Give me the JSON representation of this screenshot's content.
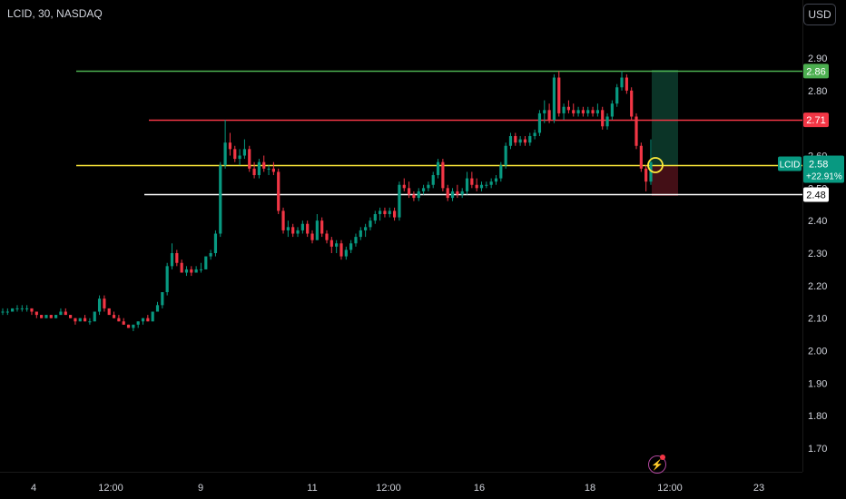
{
  "header": {
    "symbol_title": "LCID, 30, NASDAQ",
    "currency": "USD"
  },
  "chart_data": {
    "type": "candlestick",
    "symbol": "LCID",
    "interval": "30",
    "exchange": "NASDAQ",
    "y_ticks": [
      "2.90",
      "2.80",
      "2.70",
      "2.60",
      "2.50",
      "2.40",
      "2.30",
      "2.20",
      "2.10",
      "2.00",
      "1.90",
      "1.80",
      "1.70"
    ],
    "ylim": [
      1.63,
      3.0
    ],
    "x_ticks": [
      "4",
      "12:00",
      "9",
      "11",
      "12:00",
      "16",
      "18",
      "12:00",
      "23"
    ],
    "horizontal_lines": [
      {
        "value": 2.86,
        "label": "2.86",
        "color": "#4caf50"
      },
      {
        "value": 2.71,
        "label": "2.71",
        "color": "#f23645"
      },
      {
        "value": 2.57,
        "label": "",
        "color": "#ffeb3b"
      },
      {
        "value": 2.48,
        "label": "2.48",
        "color": "#ffffff"
      }
    ],
    "last_price": {
      "symbol": "LCID",
      "price": "2.58",
      "change": "+22.91%",
      "color": "#089981"
    },
    "up_color": "#089981",
    "down_color": "#f23645",
    "candles": [
      [
        2.12,
        2.13,
        2.11,
        2.12
      ],
      [
        2.12,
        2.13,
        2.11,
        2.12
      ],
      [
        2.12,
        2.13,
        2.12,
        2.13
      ],
      [
        2.13,
        2.14,
        2.12,
        2.13
      ],
      [
        2.13,
        2.14,
        2.12,
        2.13
      ],
      [
        2.13,
        2.14,
        2.12,
        2.13
      ],
      [
        2.13,
        2.13,
        2.11,
        2.12
      ],
      [
        2.12,
        2.12,
        2.1,
        2.11
      ],
      [
        2.11,
        2.11,
        2.1,
        2.1
      ],
      [
        2.1,
        2.11,
        2.1,
        2.11
      ],
      [
        2.11,
        2.11,
        2.1,
        2.1
      ],
      [
        2.1,
        2.11,
        2.1,
        2.11
      ],
      [
        2.11,
        2.13,
        2.11,
        2.12
      ],
      [
        2.12,
        2.13,
        2.11,
        2.11
      ],
      [
        2.11,
        2.11,
        2.1,
        2.1
      ],
      [
        2.1,
        2.1,
        2.08,
        2.09
      ],
      [
        2.09,
        2.1,
        2.09,
        2.1
      ],
      [
        2.1,
        2.11,
        2.09,
        2.09
      ],
      [
        2.09,
        2.1,
        2.08,
        2.09
      ],
      [
        2.09,
        2.12,
        2.09,
        2.12
      ],
      [
        2.12,
        2.17,
        2.11,
        2.16
      ],
      [
        2.16,
        2.17,
        2.12,
        2.13
      ],
      [
        2.13,
        2.13,
        2.11,
        2.11
      ],
      [
        2.11,
        2.12,
        2.1,
        2.1
      ],
      [
        2.1,
        2.11,
        2.09,
        2.09
      ],
      [
        2.09,
        2.1,
        2.08,
        2.08
      ],
      [
        2.08,
        2.08,
        2.07,
        2.07
      ],
      [
        2.07,
        2.08,
        2.06,
        2.08
      ],
      [
        2.08,
        2.09,
        2.07,
        2.09
      ],
      [
        2.09,
        2.1,
        2.08,
        2.1
      ],
      [
        2.1,
        2.11,
        2.09,
        2.09
      ],
      [
        2.09,
        2.12,
        2.09,
        2.12
      ],
      [
        2.12,
        2.15,
        2.12,
        2.14
      ],
      [
        2.14,
        2.18,
        2.13,
        2.18
      ],
      [
        2.18,
        2.27,
        2.17,
        2.26
      ],
      [
        2.26,
        2.33,
        2.25,
        2.3
      ],
      [
        2.3,
        2.31,
        2.26,
        2.27
      ],
      [
        2.27,
        2.28,
        2.24,
        2.24
      ],
      [
        2.24,
        2.26,
        2.23,
        2.25
      ],
      [
        2.25,
        2.26,
        2.23,
        2.24
      ],
      [
        2.24,
        2.26,
        2.24,
        2.25
      ],
      [
        2.25,
        2.27,
        2.24,
        2.25
      ],
      [
        2.25,
        2.29,
        2.25,
        2.29
      ],
      [
        2.29,
        2.31,
        2.28,
        2.3
      ],
      [
        2.3,
        2.37,
        2.29,
        2.36
      ],
      [
        2.36,
        2.58,
        2.35,
        2.57
      ],
      [
        2.57,
        2.71,
        2.56,
        2.64
      ],
      [
        2.64,
        2.67,
        2.6,
        2.62
      ],
      [
        2.62,
        2.63,
        2.58,
        2.59
      ],
      [
        2.59,
        2.62,
        2.57,
        2.6
      ],
      [
        2.6,
        2.65,
        2.59,
        2.62
      ],
      [
        2.62,
        2.63,
        2.55,
        2.56
      ],
      [
        2.56,
        2.58,
        2.53,
        2.54
      ],
      [
        2.54,
        2.59,
        2.53,
        2.58
      ],
      [
        2.58,
        2.6,
        2.55,
        2.56
      ],
      [
        2.56,
        2.57,
        2.54,
        2.56
      ],
      [
        2.56,
        2.58,
        2.54,
        2.55
      ],
      [
        2.55,
        2.56,
        2.42,
        2.43
      ],
      [
        2.43,
        2.44,
        2.36,
        2.37
      ],
      [
        2.37,
        2.4,
        2.35,
        2.38
      ],
      [
        2.38,
        2.39,
        2.35,
        2.36
      ],
      [
        2.36,
        2.38,
        2.35,
        2.37
      ],
      [
        2.37,
        2.4,
        2.36,
        2.39
      ],
      [
        2.39,
        2.4,
        2.35,
        2.36
      ],
      [
        2.36,
        2.37,
        2.33,
        2.34
      ],
      [
        2.34,
        2.42,
        2.34,
        2.4
      ],
      [
        2.4,
        2.41,
        2.35,
        2.36
      ],
      [
        2.36,
        2.37,
        2.33,
        2.34
      ],
      [
        2.34,
        2.35,
        2.3,
        2.32
      ],
      [
        2.32,
        2.34,
        2.3,
        2.33
      ],
      [
        2.33,
        2.34,
        2.28,
        2.29
      ],
      [
        2.29,
        2.32,
        2.28,
        2.31
      ],
      [
        2.31,
        2.34,
        2.3,
        2.33
      ],
      [
        2.33,
        2.36,
        2.32,
        2.35
      ],
      [
        2.35,
        2.38,
        2.34,
        2.37
      ],
      [
        2.37,
        2.39,
        2.35,
        2.38
      ],
      [
        2.38,
        2.41,
        2.37,
        2.4
      ],
      [
        2.4,
        2.43,
        2.39,
        2.42
      ],
      [
        2.42,
        2.44,
        2.4,
        2.43
      ],
      [
        2.43,
        2.44,
        2.41,
        2.42
      ],
      [
        2.42,
        2.44,
        2.41,
        2.43
      ],
      [
        2.43,
        2.44,
        2.4,
        2.41
      ],
      [
        2.41,
        2.52,
        2.4,
        2.51
      ],
      [
        2.51,
        2.53,
        2.49,
        2.5
      ],
      [
        2.5,
        2.52,
        2.47,
        2.48
      ],
      [
        2.48,
        2.49,
        2.46,
        2.47
      ],
      [
        2.47,
        2.5,
        2.46,
        2.49
      ],
      [
        2.49,
        2.51,
        2.48,
        2.5
      ],
      [
        2.5,
        2.52,
        2.49,
        2.51
      ],
      [
        2.51,
        2.55,
        2.5,
        2.54
      ],
      [
        2.54,
        2.59,
        2.53,
        2.58
      ],
      [
        2.58,
        2.59,
        2.49,
        2.5
      ],
      [
        2.5,
        2.51,
        2.46,
        2.47
      ],
      [
        2.47,
        2.5,
        2.46,
        2.49
      ],
      [
        2.49,
        2.51,
        2.47,
        2.48
      ],
      [
        2.48,
        2.5,
        2.47,
        2.49
      ],
      [
        2.49,
        2.55,
        2.48,
        2.53
      ],
      [
        2.53,
        2.55,
        2.5,
        2.51
      ],
      [
        2.51,
        2.53,
        2.49,
        2.5
      ],
      [
        2.5,
        2.52,
        2.49,
        2.51
      ],
      [
        2.51,
        2.52,
        2.5,
        2.51
      ],
      [
        2.51,
        2.53,
        2.5,
        2.52
      ],
      [
        2.52,
        2.54,
        2.51,
        2.53
      ],
      [
        2.53,
        2.58,
        2.52,
        2.57
      ],
      [
        2.57,
        2.64,
        2.56,
        2.63
      ],
      [
        2.63,
        2.67,
        2.62,
        2.66
      ],
      [
        2.66,
        2.67,
        2.63,
        2.64
      ],
      [
        2.64,
        2.66,
        2.63,
        2.65
      ],
      [
        2.65,
        2.66,
        2.63,
        2.64
      ],
      [
        2.64,
        2.67,
        2.63,
        2.66
      ],
      [
        2.66,
        2.68,
        2.65,
        2.67
      ],
      [
        2.67,
        2.74,
        2.66,
        2.73
      ],
      [
        2.73,
        2.77,
        2.7,
        2.74
      ],
      [
        2.74,
        2.76,
        2.7,
        2.71
      ],
      [
        2.71,
        2.85,
        2.7,
        2.84
      ],
      [
        2.84,
        2.86,
        2.72,
        2.73
      ],
      [
        2.73,
        2.76,
        2.71,
        2.75
      ],
      [
        2.75,
        2.77,
        2.73,
        2.74
      ],
      [
        2.74,
        2.76,
        2.72,
        2.73
      ],
      [
        2.73,
        2.75,
        2.72,
        2.74
      ],
      [
        2.74,
        2.75,
        2.72,
        2.73
      ],
      [
        2.73,
        2.75,
        2.72,
        2.74
      ],
      [
        2.74,
        2.75,
        2.72,
        2.73
      ],
      [
        2.73,
        2.76,
        2.72,
        2.74
      ],
      [
        2.74,
        2.75,
        2.68,
        2.69
      ],
      [
        2.69,
        2.73,
        2.68,
        2.72
      ],
      [
        2.72,
        2.77,
        2.71,
        2.76
      ],
      [
        2.76,
        2.82,
        2.75,
        2.81
      ],
      [
        2.81,
        2.86,
        2.8,
        2.84
      ],
      [
        2.84,
        2.85,
        2.79,
        2.8
      ],
      [
        2.8,
        2.81,
        2.71,
        2.72
      ],
      [
        2.72,
        2.73,
        2.62,
        2.63
      ],
      [
        2.63,
        2.64,
        2.55,
        2.56
      ],
      [
        2.56,
        2.57,
        2.49,
        2.52
      ],
      [
        2.52,
        2.65,
        2.51,
        2.58
      ]
    ]
  }
}
